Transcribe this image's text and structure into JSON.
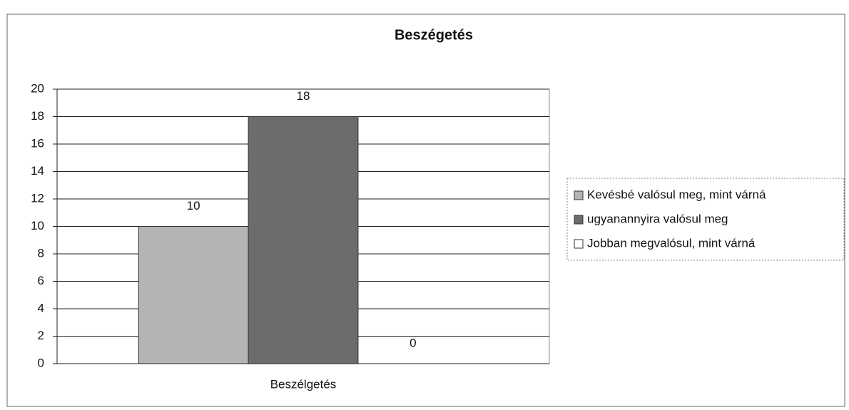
{
  "chart_data": {
    "type": "bar",
    "title": "Beszégetés",
    "categories": [
      "Beszélgetés"
    ],
    "series": [
      {
        "name": "Kevésbé valósul meg, mint várná",
        "color": "#b4b4b4",
        "values": [
          10
        ]
      },
      {
        "name": "ugyanannyira valósul meg",
        "color": "#6c6c6c",
        "values": [
          18
        ]
      },
      {
        "name": "Jobban megvalósul, mint várná",
        "color": "#ffffff",
        "values": [
          0
        ]
      }
    ],
    "ylim": [
      0,
      20
    ],
    "yticks": [
      0,
      2,
      4,
      6,
      8,
      10,
      12,
      14,
      16,
      18,
      20
    ],
    "grid": true,
    "legend": "right"
  }
}
